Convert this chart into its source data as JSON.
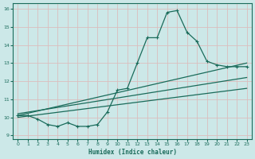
{
  "xlabel": "Humidex (Indice chaleur)",
  "xlim": [
    -0.5,
    23.5
  ],
  "ylim": [
    8.8,
    16.3
  ],
  "yticks": [
    9,
    10,
    11,
    12,
    13,
    14,
    15,
    16
  ],
  "xticks": [
    0,
    1,
    2,
    3,
    4,
    5,
    6,
    7,
    8,
    9,
    10,
    11,
    12,
    13,
    14,
    15,
    16,
    17,
    18,
    19,
    20,
    21,
    22,
    23
  ],
  "background_color": "#cce8e8",
  "grid_color": "#dbbebe",
  "line_color": "#1a6b5a",
  "line_width": 0.9,
  "marker": "+",
  "marker_size": 3.5,
  "main_series": [
    10.1,
    10.1,
    9.9,
    9.6,
    9.5,
    9.7,
    9.5,
    9.5,
    9.6,
    10.3,
    11.5,
    11.6,
    13.0,
    14.4,
    14.4,
    15.8,
    15.9,
    14.7,
    14.2,
    13.1,
    12.9,
    12.8,
    12.8,
    12.8
  ],
  "linear_lines": [
    {
      "x": [
        0,
        23
      ],
      "y": [
        10.1,
        13.0
      ]
    },
    {
      "x": [
        0,
        23
      ],
      "y": [
        10.0,
        11.6
      ]
    },
    {
      "x": [
        0,
        23
      ],
      "y": [
        10.2,
        12.2
      ]
    }
  ]
}
